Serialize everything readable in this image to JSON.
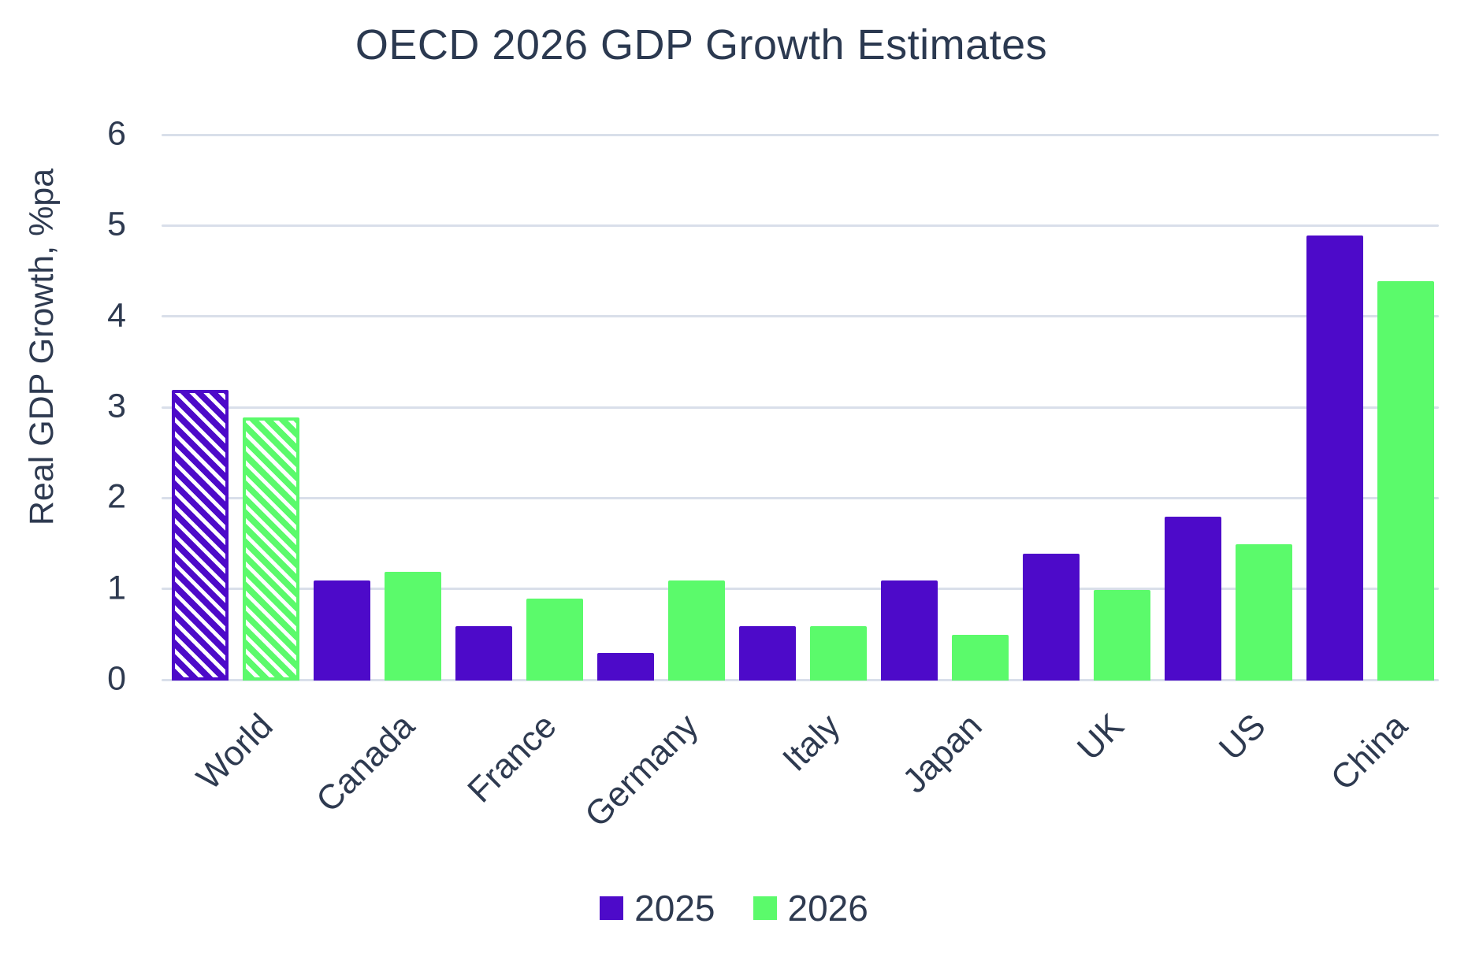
{
  "title": "OECD 2026 GDP Growth Estimates",
  "colors": {
    "text": "#2E3A50",
    "title_text": "#2B3950",
    "gridline": "#D9DFEA",
    "series_2025": "#4D0AC9",
    "series_2026": "#5BFA6B",
    "hatch_background": "#FFFFFF"
  },
  "chart_data": {
    "type": "bar",
    "title": "OECD 2026 GDP Growth Estimates",
    "xlabel": "",
    "ylabel": "Real GDP Growth, %pa",
    "ylim": [
      0,
      6
    ],
    "yticks": [
      0,
      1,
      2,
      3,
      4,
      5,
      6
    ],
    "grid": true,
    "legend_position": "bottom",
    "categories": [
      "World",
      "Canada",
      "France",
      "Germany",
      "Italy",
      "Japan",
      "UK",
      "US",
      "China"
    ],
    "series": [
      {
        "name": "2025",
        "color": "#4D0AC9",
        "values": [
          3.2,
          1.1,
          0.6,
          0.3,
          0.6,
          1.1,
          1.4,
          1.8,
          4.9
        ]
      },
      {
        "name": "2026",
        "color": "#5BFA6B",
        "values": [
          2.9,
          1.2,
          0.9,
          1.1,
          0.6,
          0.5,
          1.0,
          1.5,
          4.4
        ]
      }
    ],
    "hatched_categories": [
      "World"
    ]
  },
  "legend": {
    "items": [
      {
        "label": "2025",
        "color": "#4D0AC9"
      },
      {
        "label": "2026",
        "color": "#5BFA6B"
      }
    ]
  }
}
